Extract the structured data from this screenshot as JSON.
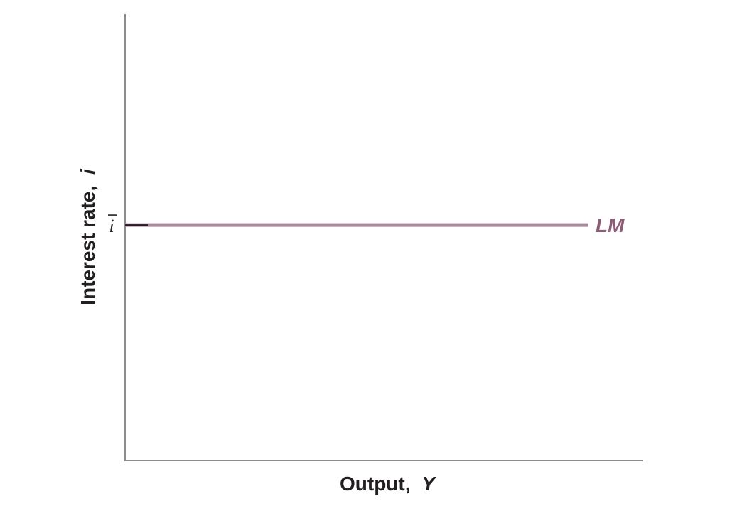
{
  "chart_data": {
    "type": "line",
    "xlabel": "Output,",
    "xlabel_var": "Y",
    "ylabel": "Interest rate,",
    "ylabel_var": "i",
    "y_ticks": [
      {
        "label": "i",
        "overbar": true,
        "value": 1
      }
    ],
    "series": [
      {
        "name": "LM",
        "x": [
          0,
          1
        ],
        "y": [
          1,
          1
        ]
      }
    ],
    "grid": false,
    "colors": {
      "axis": "#8c8c8c",
      "curve": "#a88b9b",
      "curve_label": "#8c5d78",
      "tick": "#231f20",
      "text": "#231f20"
    }
  }
}
